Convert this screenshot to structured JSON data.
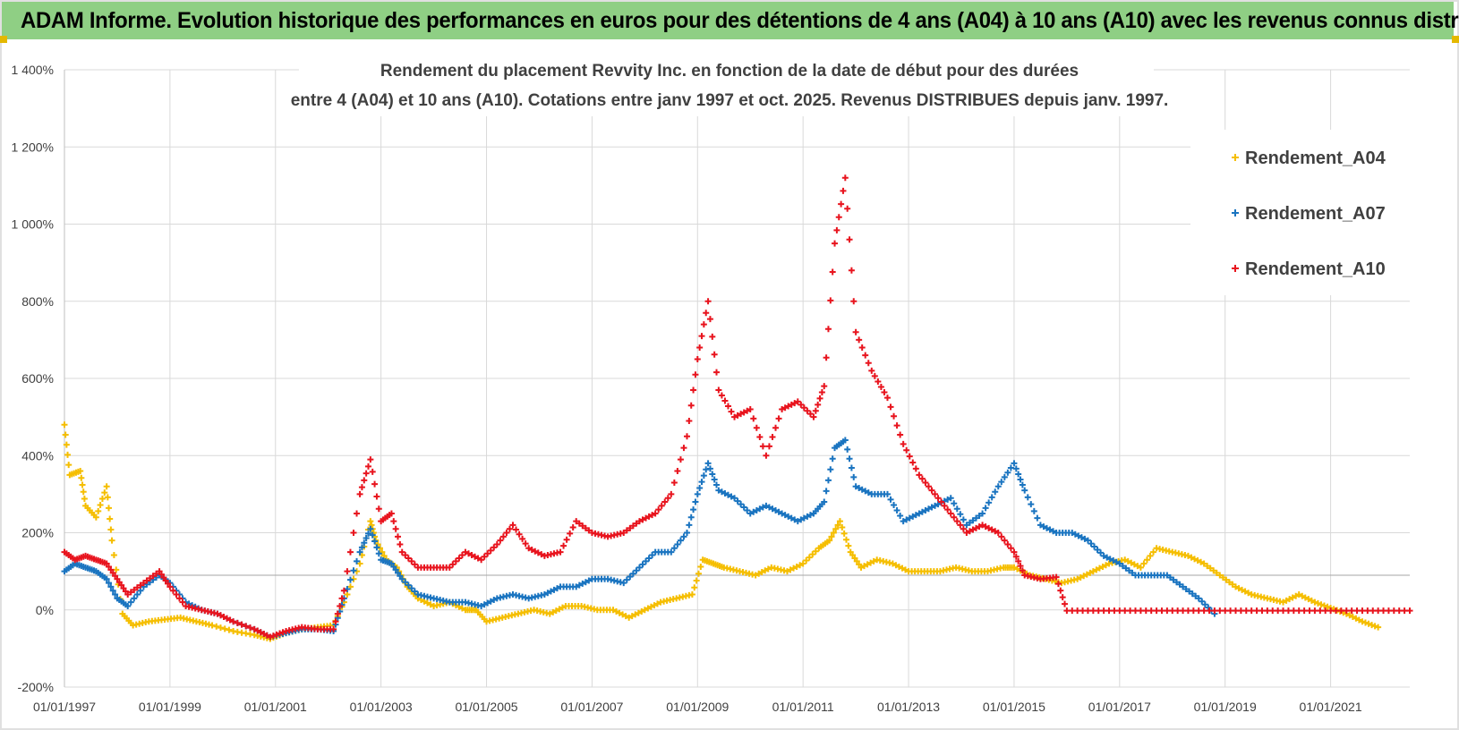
{
  "banner": {
    "title": "ADAM Informe. Evolution historique des performances en euros pour des détentions de 4 ans (A04) à 10 ans (A10) avec les revenus connus distribués"
  },
  "colors": {
    "banner_bg": "#8fcf84",
    "A04": "#f5be00",
    "A07": "#1a74c0",
    "A10": "#e8141e",
    "grid": "#d9d9d9",
    "text": "#404040"
  },
  "chart_data": {
    "type": "scatter",
    "title_line1": "Rendement du placement Revvity Inc. en fonction de la date de début pour des durées",
    "title_line2": "entre 4 (A04) et 10 ans (A10). Cotations entre janv 1997 et oct. 2025. Revenus DISTRIBUES depuis janv. 1997.",
    "xlabel": "",
    "ylabel": "",
    "ylim": [
      -200,
      1400
    ],
    "xlim": [
      "1997-01-01",
      "2022-06-01"
    ],
    "y_ticks": [
      "-200%",
      "0%",
      "200%",
      "400%",
      "600%",
      "800%",
      "1 000%",
      "1 200%",
      "1 400%"
    ],
    "y_tick_values": [
      -200,
      0,
      200,
      400,
      600,
      800,
      1000,
      1200,
      1400
    ],
    "x_ticks": [
      "01/01/1997",
      "01/01/1999",
      "01/01/2001",
      "01/01/2003",
      "01/01/2005",
      "01/01/2007",
      "01/01/2009",
      "01/01/2011",
      "01/01/2013",
      "01/01/2015",
      "01/01/2017",
      "01/01/2019",
      "01/01/2021"
    ],
    "x_tick_years": [
      1997,
      1999,
      2001,
      2003,
      2005,
      2007,
      2009,
      2011,
      2013,
      2015,
      2017,
      2019,
      2021
    ],
    "legend_position": "top-right",
    "grid": true,
    "series": [
      {
        "name": "Rendement_A04",
        "color": "#f5be00",
        "points": [
          [
            1997.0,
            480
          ],
          [
            1997.1,
            350
          ],
          [
            1997.3,
            360
          ],
          [
            1997.4,
            270
          ],
          [
            1997.6,
            240
          ],
          [
            1997.8,
            320
          ],
          [
            1997.9,
            180
          ],
          [
            1998.1,
            -10
          ],
          [
            1998.3,
            -40
          ],
          [
            1998.6,
            -30
          ],
          [
            1998.9,
            -25
          ],
          [
            1999.2,
            -20
          ],
          [
            1999.5,
            -30
          ],
          [
            1999.8,
            -40
          ],
          [
            2000.2,
            -55
          ],
          [
            2000.6,
            -65
          ],
          [
            2000.9,
            -75
          ],
          [
            2001.2,
            -60
          ],
          [
            2001.5,
            -50
          ],
          [
            2001.8,
            -45
          ],
          [
            2002.1,
            -40
          ],
          [
            2002.3,
            20
          ],
          [
            2002.6,
            120
          ],
          [
            2002.8,
            230
          ],
          [
            2002.9,
            180
          ],
          [
            2003.1,
            130
          ],
          [
            2003.3,
            110
          ],
          [
            2003.5,
            60
          ],
          [
            2003.7,
            30
          ],
          [
            2004.0,
            10
          ],
          [
            2004.3,
            20
          ],
          [
            2004.6,
            0
          ],
          [
            2004.8,
            0
          ],
          [
            2005.0,
            -30
          ],
          [
            2005.3,
            -20
          ],
          [
            2005.6,
            -10
          ],
          [
            2005.9,
            0
          ],
          [
            2006.2,
            -10
          ],
          [
            2006.5,
            10
          ],
          [
            2006.8,
            10
          ],
          [
            2007.1,
            0
          ],
          [
            2007.4,
            0
          ],
          [
            2007.7,
            -20
          ],
          [
            2008.0,
            0
          ],
          [
            2008.3,
            20
          ],
          [
            2008.6,
            30
          ],
          [
            2008.9,
            40
          ],
          [
            2009.1,
            130
          ],
          [
            2009.3,
            120
          ],
          [
            2009.5,
            110
          ],
          [
            2009.8,
            100
          ],
          [
            2010.1,
            90
          ],
          [
            2010.4,
            110
          ],
          [
            2010.7,
            100
          ],
          [
            2011.0,
            120
          ],
          [
            2011.3,
            160
          ],
          [
            2011.5,
            180
          ],
          [
            2011.7,
            230
          ],
          [
            2011.9,
            150
          ],
          [
            2012.1,
            110
          ],
          [
            2012.4,
            130
          ],
          [
            2012.7,
            120
          ],
          [
            2013.0,
            100
          ],
          [
            2013.3,
            100
          ],
          [
            2013.6,
            100
          ],
          [
            2013.9,
            110
          ],
          [
            2014.2,
            100
          ],
          [
            2014.5,
            100
          ],
          [
            2014.8,
            110
          ],
          [
            2015.0,
            110
          ],
          [
            2015.3,
            90
          ],
          [
            2015.6,
            80
          ],
          [
            2015.9,
            70
          ],
          [
            2016.2,
            80
          ],
          [
            2016.5,
            100
          ],
          [
            2016.8,
            120
          ],
          [
            2017.1,
            130
          ],
          [
            2017.4,
            110
          ],
          [
            2017.7,
            160
          ],
          [
            2018.0,
            150
          ],
          [
            2018.3,
            140
          ],
          [
            2018.6,
            120
          ],
          [
            2018.9,
            90
          ],
          [
            2019.2,
            60
          ],
          [
            2019.5,
            40
          ],
          [
            2019.8,
            30
          ],
          [
            2020.1,
            20
          ],
          [
            2020.4,
            40
          ],
          [
            2020.7,
            20
          ],
          [
            2021.0,
            5
          ],
          [
            2021.3,
            -10
          ],
          [
            2021.6,
            -30
          ],
          [
            2021.9,
            -45
          ]
        ]
      },
      {
        "name": "Rendement_A07",
        "color": "#1a74c0",
        "points": [
          [
            1997.0,
            100
          ],
          [
            1997.2,
            120
          ],
          [
            1997.4,
            110
          ],
          [
            1997.6,
            100
          ],
          [
            1997.8,
            80
          ],
          [
            1998.0,
            30
          ],
          [
            1998.2,
            10
          ],
          [
            1998.5,
            60
          ],
          [
            1998.8,
            90
          ],
          [
            1999.0,
            70
          ],
          [
            1999.3,
            20
          ],
          [
            1999.6,
            0
          ],
          [
            1999.9,
            -10
          ],
          [
            2000.2,
            -30
          ],
          [
            2000.6,
            -50
          ],
          [
            2000.9,
            -70
          ],
          [
            2001.2,
            -60
          ],
          [
            2001.5,
            -50
          ],
          [
            2001.8,
            -50
          ],
          [
            2002.1,
            -55
          ],
          [
            2002.3,
            30
          ],
          [
            2002.6,
            150
          ],
          [
            2002.8,
            210
          ],
          [
            2003.0,
            130
          ],
          [
            2003.2,
            120
          ],
          [
            2003.4,
            80
          ],
          [
            2003.7,
            40
          ],
          [
            2004.0,
            30
          ],
          [
            2004.3,
            20
          ],
          [
            2004.6,
            20
          ],
          [
            2004.9,
            10
          ],
          [
            2005.2,
            30
          ],
          [
            2005.5,
            40
          ],
          [
            2005.8,
            30
          ],
          [
            2006.1,
            40
          ],
          [
            2006.4,
            60
          ],
          [
            2006.7,
            60
          ],
          [
            2007.0,
            80
          ],
          [
            2007.3,
            80
          ],
          [
            2007.6,
            70
          ],
          [
            2007.9,
            110
          ],
          [
            2008.2,
            150
          ],
          [
            2008.5,
            150
          ],
          [
            2008.8,
            200
          ],
          [
            2009.0,
            300
          ],
          [
            2009.2,
            380
          ],
          [
            2009.4,
            310
          ],
          [
            2009.7,
            290
          ],
          [
            2010.0,
            250
          ],
          [
            2010.3,
            270
          ],
          [
            2010.6,
            250
          ],
          [
            2010.9,
            230
          ],
          [
            2011.2,
            250
          ],
          [
            2011.4,
            280
          ],
          [
            2011.6,
            420
          ],
          [
            2011.8,
            440
          ],
          [
            2012.0,
            320
          ],
          [
            2012.3,
            300
          ],
          [
            2012.6,
            300
          ],
          [
            2012.9,
            230
          ],
          [
            2013.2,
            250
          ],
          [
            2013.5,
            270
          ],
          [
            2013.8,
            290
          ],
          [
            2014.1,
            220
          ],
          [
            2014.4,
            250
          ],
          [
            2014.7,
            320
          ],
          [
            2015.0,
            380
          ],
          [
            2015.2,
            310
          ],
          [
            2015.5,
            220
          ],
          [
            2015.8,
            200
          ],
          [
            2016.1,
            200
          ],
          [
            2016.4,
            180
          ],
          [
            2016.7,
            140
          ],
          [
            2017.0,
            120
          ],
          [
            2017.3,
            90
          ],
          [
            2017.6,
            90
          ],
          [
            2017.9,
            90
          ],
          [
            2018.2,
            60
          ],
          [
            2018.5,
            30
          ],
          [
            2018.8,
            -10
          ]
        ]
      },
      {
        "name": "Rendement_A10",
        "color": "#e8141e",
        "points": [
          [
            1997.0,
            150
          ],
          [
            1997.2,
            130
          ],
          [
            1997.4,
            140
          ],
          [
            1997.6,
            130
          ],
          [
            1997.8,
            120
          ],
          [
            1998.0,
            80
          ],
          [
            1998.2,
            40
          ],
          [
            1998.5,
            70
          ],
          [
            1998.8,
            100
          ],
          [
            1999.0,
            60
          ],
          [
            1999.3,
            10
          ],
          [
            1999.6,
            0
          ],
          [
            1999.9,
            -10
          ],
          [
            2000.2,
            -30
          ],
          [
            2000.6,
            -50
          ],
          [
            2000.9,
            -70
          ],
          [
            2001.2,
            -55
          ],
          [
            2001.5,
            -45
          ],
          [
            2001.8,
            -50
          ],
          [
            2002.1,
            -50
          ],
          [
            2002.3,
            50
          ],
          [
            2002.6,
            300
          ],
          [
            2002.8,
            390
          ],
          [
            2003.0,
            230
          ],
          [
            2003.2,
            250
          ],
          [
            2003.4,
            150
          ],
          [
            2003.7,
            110
          ],
          [
            2004.0,
            110
          ],
          [
            2004.3,
            110
          ],
          [
            2004.6,
            150
          ],
          [
            2004.9,
            130
          ],
          [
            2005.2,
            170
          ],
          [
            2005.5,
            220
          ],
          [
            2005.8,
            160
          ],
          [
            2006.1,
            140
          ],
          [
            2006.4,
            150
          ],
          [
            2006.7,
            230
          ],
          [
            2007.0,
            200
          ],
          [
            2007.3,
            190
          ],
          [
            2007.6,
            200
          ],
          [
            2007.9,
            230
          ],
          [
            2008.2,
            250
          ],
          [
            2008.5,
            300
          ],
          [
            2008.8,
            450
          ],
          [
            2009.0,
            650
          ],
          [
            2009.2,
            800
          ],
          [
            2009.4,
            570
          ],
          [
            2009.7,
            500
          ],
          [
            2010.0,
            520
          ],
          [
            2010.3,
            400
          ],
          [
            2010.6,
            520
          ],
          [
            2010.9,
            540
          ],
          [
            2011.2,
            500
          ],
          [
            2011.4,
            580
          ],
          [
            2011.6,
            950
          ],
          [
            2011.8,
            1120
          ],
          [
            2012.0,
            720
          ],
          [
            2012.3,
            620
          ],
          [
            2012.6,
            550
          ],
          [
            2012.9,
            430
          ],
          [
            2013.2,
            350
          ],
          [
            2013.5,
            300
          ],
          [
            2013.8,
            250
          ],
          [
            2014.1,
            200
          ],
          [
            2014.4,
            220
          ],
          [
            2014.7,
            200
          ],
          [
            2015.0,
            150
          ],
          [
            2015.2,
            90
          ],
          [
            2015.5,
            80
          ],
          [
            2015.8,
            85
          ],
          [
            2016.0,
            -2
          ],
          [
            2016.5,
            -2
          ],
          [
            2017.0,
            -2
          ],
          [
            2017.5,
            -2
          ],
          [
            2018.0,
            -2
          ],
          [
            2018.5,
            -2
          ],
          [
            2019.0,
            -2
          ],
          [
            2019.5,
            -2
          ],
          [
            2020.0,
            -2
          ],
          [
            2020.5,
            -2
          ],
          [
            2021.0,
            -2
          ],
          [
            2021.5,
            -2
          ],
          [
            2022.0,
            -2
          ],
          [
            2022.5,
            -2
          ]
        ]
      }
    ]
  }
}
